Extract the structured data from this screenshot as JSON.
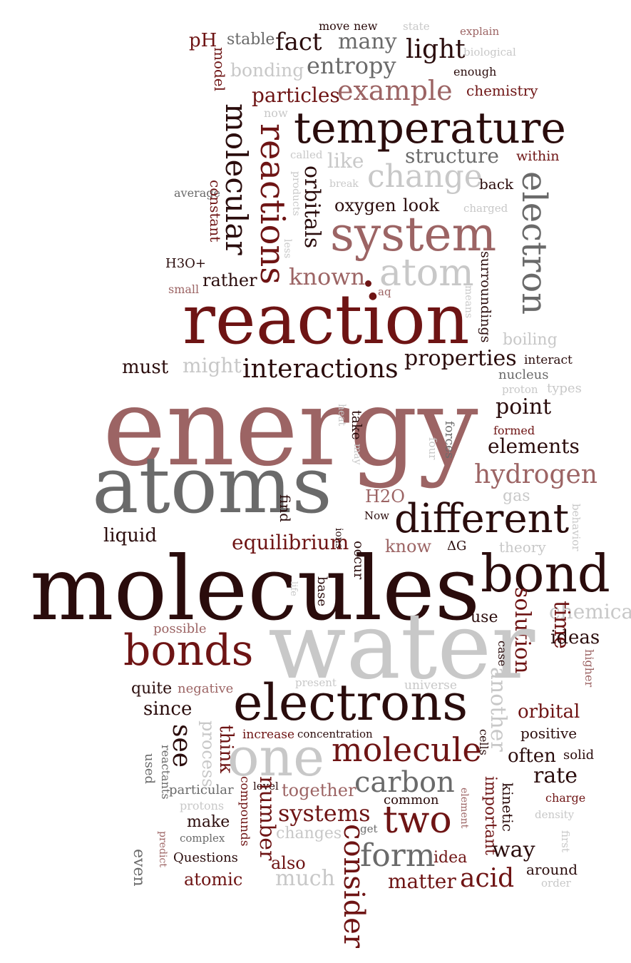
{
  "palette": {
    "dark": "#2a0c0c",
    "maroon": "#6e1414",
    "rose": "#9c6464",
    "gray": "#6a6a6a",
    "light": "#c8c8c8"
  },
  "words": [
    {
      "t": "pH",
      "c": "maroon",
      "rot": false
    },
    {
      "t": "stable",
      "c": "gray",
      "rot": false
    },
    {
      "t": "fact",
      "c": "dark",
      "rot": false
    },
    {
      "t": "move",
      "c": "dark",
      "rot": false
    },
    {
      "t": "new",
      "c": "dark",
      "rot": false
    },
    {
      "t": "many",
      "c": "gray",
      "rot": false
    },
    {
      "t": "state",
      "c": "light",
      "rot": false
    },
    {
      "t": "explain",
      "c": "rose",
      "rot": false
    },
    {
      "t": "light",
      "c": "dark",
      "rot": false
    },
    {
      "t": "biological",
      "c": "light",
      "rot": false
    },
    {
      "t": "bonding",
      "c": "light",
      "rot": false
    },
    {
      "t": "entropy",
      "c": "gray",
      "rot": false
    },
    {
      "t": "enough",
      "c": "dark",
      "rot": false
    },
    {
      "t": "model",
      "c": "maroon",
      "rot": true
    },
    {
      "t": "particles",
      "c": "maroon",
      "rot": false
    },
    {
      "t": "example",
      "c": "rose",
      "rot": false
    },
    {
      "t": "chemistry",
      "c": "maroon",
      "rot": false
    },
    {
      "t": "now",
      "c": "light",
      "rot": false
    },
    {
      "t": "molecular",
      "c": "dark",
      "rot": true
    },
    {
      "t": "reactions",
      "c": "maroon",
      "rot": true
    },
    {
      "t": "temperature",
      "c": "dark",
      "rot": false
    },
    {
      "t": "called",
      "c": "light",
      "rot": false
    },
    {
      "t": "structure",
      "c": "gray",
      "rot": false
    },
    {
      "t": "within",
      "c": "maroon",
      "rot": false
    },
    {
      "t": "like",
      "c": "light",
      "rot": false
    },
    {
      "t": "change",
      "c": "light",
      "rot": false
    },
    {
      "t": "orbitals",
      "c": "dark",
      "rot": true
    },
    {
      "t": "back",
      "c": "dark",
      "rot": false
    },
    {
      "t": "electron",
      "c": "gray",
      "rot": true
    },
    {
      "t": "products",
      "c": "light",
      "rot": true
    },
    {
      "t": "break",
      "c": "light",
      "rot": false
    },
    {
      "t": "average",
      "c": "gray",
      "rot": false
    },
    {
      "t": "constant",
      "c": "maroon",
      "rot": true
    },
    {
      "t": "oxygen",
      "c": "dark",
      "rot": false
    },
    {
      "t": "look",
      "c": "dark",
      "rot": false
    },
    {
      "t": "charged",
      "c": "light",
      "rot": false
    },
    {
      "t": "system",
      "c": "rose",
      "rot": false
    },
    {
      "t": "less",
      "c": "light",
      "rot": true
    },
    {
      "t": "H3O+",
      "c": "dark",
      "rot": false
    },
    {
      "t": "rather",
      "c": "dark",
      "rot": false
    },
    {
      "t": "known",
      "c": "rose",
      "rot": false
    },
    {
      "t": "atom",
      "c": "light",
      "rot": false
    },
    {
      "t": "aq",
      "c": "rose",
      "rot": false
    },
    {
      "t": "surroundings",
      "c": "dark",
      "rot": true
    },
    {
      "t": "means",
      "c": "light",
      "rot": true
    },
    {
      "t": "small",
      "c": "rose",
      "rot": false
    },
    {
      "t": "reaction",
      "c": "maroon",
      "rot": false
    },
    {
      "t": "boiling",
      "c": "light",
      "rot": false
    },
    {
      "t": "must",
      "c": "dark",
      "rot": false
    },
    {
      "t": "might",
      "c": "light",
      "rot": false
    },
    {
      "t": "interactions",
      "c": "dark",
      "rot": false
    },
    {
      "t": "properties",
      "c": "dark",
      "rot": false
    },
    {
      "t": "interact",
      "c": "dark",
      "rot": false
    },
    {
      "t": "nucleus",
      "c": "gray",
      "rot": false
    },
    {
      "t": "proton",
      "c": "light",
      "rot": false
    },
    {
      "t": "types",
      "c": "light",
      "rot": false
    },
    {
      "t": "energy",
      "c": "rose",
      "rot": false
    },
    {
      "t": "point",
      "c": "dark",
      "rot": false
    },
    {
      "t": "take",
      "c": "dark",
      "rot": true
    },
    {
      "t": "heat",
      "c": "light",
      "rot": true
    },
    {
      "t": "may",
      "c": "light",
      "rot": true
    },
    {
      "t": "forces",
      "c": "gray",
      "rot": true
    },
    {
      "t": "formed",
      "c": "maroon",
      "rot": false
    },
    {
      "t": "four",
      "c": "light",
      "rot": true
    },
    {
      "t": "elements",
      "c": "dark",
      "rot": false
    },
    {
      "t": "atoms",
      "c": "gray",
      "rot": false
    },
    {
      "t": "hydrogen",
      "c": "rose",
      "rot": false
    },
    {
      "t": "gas",
      "c": "light",
      "rot": false
    },
    {
      "t": "find",
      "c": "dark",
      "rot": true
    },
    {
      "t": "H2O",
      "c": "rose",
      "rot": false
    },
    {
      "t": "Now",
      "c": "dark",
      "rot": false
    },
    {
      "t": "behavior",
      "c": "light",
      "rot": true
    },
    {
      "t": "different",
      "c": "dark",
      "rot": false
    },
    {
      "t": "liquid",
      "c": "dark",
      "rot": false
    },
    {
      "t": "equilibrium",
      "c": "maroon",
      "rot": false
    },
    {
      "t": "ions",
      "c": "dark",
      "rot": true
    },
    {
      "t": "occur",
      "c": "dark",
      "rot": true
    },
    {
      "t": "know",
      "c": "rose",
      "rot": false
    },
    {
      "t": "ΔG",
      "c": "dark",
      "rot": false
    },
    {
      "t": "theory",
      "c": "light",
      "rot": false
    },
    {
      "t": "molecules",
      "c": "dark",
      "rot": false
    },
    {
      "t": "life",
      "c": "light",
      "rot": true
    },
    {
      "t": "base",
      "c": "dark",
      "rot": true
    },
    {
      "t": "bond",
      "c": "dark",
      "rot": false
    },
    {
      "t": "chemical",
      "c": "light",
      "rot": false
    },
    {
      "t": "use",
      "c": "dark",
      "rot": false
    },
    {
      "t": "solution",
      "c": "maroon",
      "rot": true
    },
    {
      "t": "time",
      "c": "maroon",
      "rot": true
    },
    {
      "t": "ideas",
      "c": "dark",
      "rot": false
    },
    {
      "t": "possible",
      "c": "rose",
      "rot": false
    },
    {
      "t": "bonds",
      "c": "maroon",
      "rot": false
    },
    {
      "t": "water",
      "c": "light",
      "rot": false
    },
    {
      "t": "case",
      "c": "dark",
      "rot": true
    },
    {
      "t": "higher",
      "c": "rose",
      "rot": true
    },
    {
      "t": "present",
      "c": "light",
      "rot": false
    },
    {
      "t": "universe",
      "c": "light",
      "rot": false
    },
    {
      "t": "another",
      "c": "light",
      "rot": true
    },
    {
      "t": "quite",
      "c": "dark",
      "rot": false
    },
    {
      "t": "negative",
      "c": "rose",
      "rot": false
    },
    {
      "t": "electrons",
      "c": "dark",
      "rot": false
    },
    {
      "t": "since",
      "c": "dark",
      "rot": false
    },
    {
      "t": "orbital",
      "c": "maroon",
      "rot": false
    },
    {
      "t": "see",
      "c": "dark",
      "rot": true
    },
    {
      "t": "process",
      "c": "light",
      "rot": true
    },
    {
      "t": "think",
      "c": "maroon",
      "rot": true
    },
    {
      "t": "increase",
      "c": "maroon",
      "rot": false
    },
    {
      "t": "concentration",
      "c": "dark",
      "rot": false
    },
    {
      "t": "one",
      "c": "light",
      "rot": false
    },
    {
      "t": "molecule",
      "c": "maroon",
      "rot": false
    },
    {
      "t": "cells",
      "c": "dark",
      "rot": true
    },
    {
      "t": "positive",
      "c": "dark",
      "rot": false
    },
    {
      "t": "often",
      "c": "dark",
      "rot": false
    },
    {
      "t": "solid",
      "c": "dark",
      "rot": false
    },
    {
      "t": "used",
      "c": "gray",
      "rot": true
    },
    {
      "t": "reactants",
      "c": "gray",
      "rot": true
    },
    {
      "t": "level",
      "c": "dark",
      "rot": false
    },
    {
      "t": "rate",
      "c": "dark",
      "rot": false
    },
    {
      "t": "carbon",
      "c": "gray",
      "rot": false
    },
    {
      "t": "particular",
      "c": "gray",
      "rot": false
    },
    {
      "t": "compounds",
      "c": "maroon",
      "rot": true
    },
    {
      "t": "number",
      "c": "maroon",
      "rot": true
    },
    {
      "t": "together",
      "c": "rose",
      "rot": false
    },
    {
      "t": "common",
      "c": "dark",
      "rot": false
    },
    {
      "t": "element",
      "c": "rose",
      "rot": true
    },
    {
      "t": "important",
      "c": "maroon",
      "rot": true
    },
    {
      "t": "kinetic",
      "c": "dark",
      "rot": true
    },
    {
      "t": "charge",
      "c": "maroon",
      "rot": false
    },
    {
      "t": "protons",
      "c": "light",
      "rot": false
    },
    {
      "t": "systems",
      "c": "maroon",
      "rot": false
    },
    {
      "t": "two",
      "c": "maroon",
      "rot": false
    },
    {
      "t": "density",
      "c": "light",
      "rot": false
    },
    {
      "t": "make",
      "c": "dark",
      "rot": false
    },
    {
      "t": "changes",
      "c": "light",
      "rot": false
    },
    {
      "t": "get",
      "c": "gray",
      "rot": false
    },
    {
      "t": "consider",
      "c": "maroon",
      "rot": true
    },
    {
      "t": "first",
      "c": "light",
      "rot": true
    },
    {
      "t": "predict",
      "c": "rose",
      "rot": true
    },
    {
      "t": "complex",
      "c": "gray",
      "rot": false
    },
    {
      "t": "way",
      "c": "dark",
      "rot": false
    },
    {
      "t": "even",
      "c": "gray",
      "rot": true
    },
    {
      "t": "Questions",
      "c": "dark",
      "rot": false
    },
    {
      "t": "form",
      "c": "gray",
      "rot": false
    },
    {
      "t": "idea",
      "c": "maroon",
      "rot": false
    },
    {
      "t": "around",
      "c": "dark",
      "rot": false
    },
    {
      "t": "also",
      "c": "maroon",
      "rot": false
    },
    {
      "t": "order",
      "c": "light",
      "rot": false
    },
    {
      "t": "atomic",
      "c": "maroon",
      "rot": false
    },
    {
      "t": "much",
      "c": "light",
      "rot": false
    },
    {
      "t": "matter",
      "c": "maroon",
      "rot": false
    },
    {
      "t": "acid",
      "c": "maroon",
      "rot": false
    }
  ]
}
